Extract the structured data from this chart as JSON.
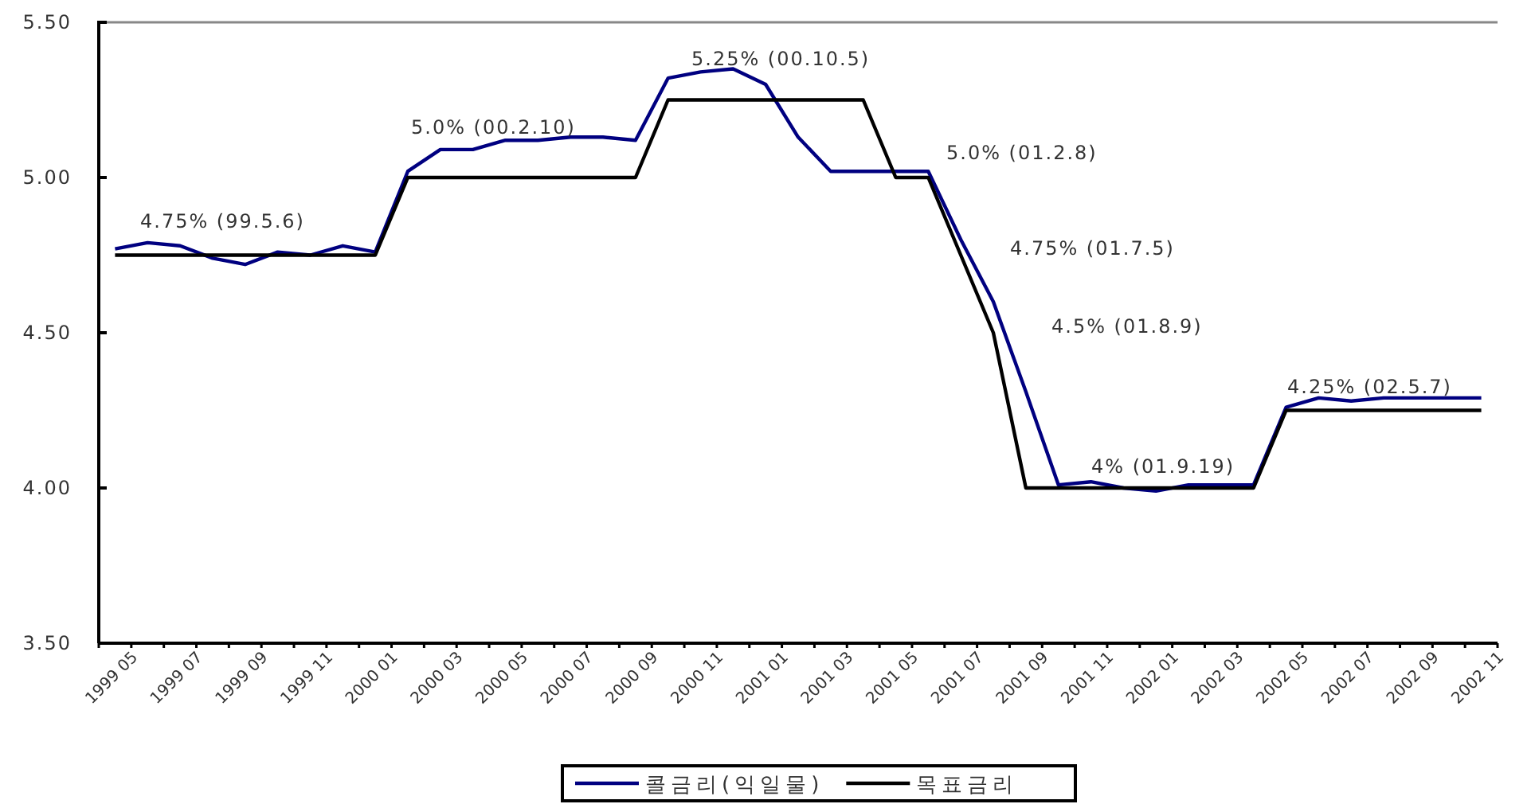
{
  "chart_data": {
    "type": "line",
    "categories": [
      "1999 05",
      null,
      "1999 07",
      null,
      "1999 09",
      null,
      "1999 11",
      null,
      "2000 01",
      null,
      "2000 03",
      null,
      "2000 05",
      null,
      "2000 07",
      null,
      "2000 09",
      null,
      "2000 11",
      null,
      "2001 01",
      null,
      "2001 03",
      null,
      "2001 05",
      null,
      "2001 07",
      null,
      "2001 09",
      null,
      "2001 11",
      null,
      "2002 01",
      null,
      "2002 03",
      null,
      "2002 05",
      null,
      "2002 07",
      null,
      "2002 09",
      null,
      "2002 11"
    ],
    "series": [
      {
        "name": "콜금리(익일물)",
        "color": "#000080",
        "values": [
          4.77,
          4.79,
          4.78,
          4.74,
          4.72,
          4.76,
          4.75,
          4.78,
          4.76,
          5.02,
          5.09,
          5.09,
          5.12,
          5.12,
          5.13,
          5.13,
          5.12,
          5.32,
          5.34,
          5.35,
          5.3,
          5.13,
          5.02,
          5.02,
          5.02,
          5.02,
          4.8,
          4.6,
          4.31,
          4.01,
          4.02,
          4.0,
          3.99,
          4.01,
          4.01,
          4.01,
          4.26,
          4.29,
          4.28,
          4.29,
          4.29,
          4.29,
          4.29
        ]
      },
      {
        "name": "목표금리",
        "color": "#000000",
        "values": [
          4.75,
          4.75,
          4.75,
          4.75,
          4.75,
          4.75,
          4.75,
          4.75,
          4.75,
          5.0,
          5.0,
          5.0,
          5.0,
          5.0,
          5.0,
          5.0,
          5.0,
          5.25,
          5.25,
          5.25,
          5.25,
          5.25,
          5.25,
          5.25,
          5.0,
          5.0,
          4.75,
          4.5,
          4.0,
          4.0,
          4.0,
          4.0,
          4.0,
          4.0,
          4.0,
          4.0,
          4.25,
          4.25,
          4.25,
          4.25,
          4.25,
          4.25,
          4.25
        ]
      }
    ],
    "ylim": [
      3.5,
      5.5
    ],
    "yticks": [
      {
        "value": 3.5,
        "label": "3.50"
      },
      {
        "value": 4.0,
        "label": "4.00"
      },
      {
        "value": 4.5,
        "label": "4.50"
      },
      {
        "value": 5.0,
        "label": "5.00"
      },
      {
        "value": 5.5,
        "label": "5.50"
      }
    ],
    "annotations": [
      "4.75% (99.5.6)",
      "5.0% (00.2.10)",
      "5.25% (00.10.5)",
      "5.0% (01.2.8)",
      "4.75% (01.7.5)",
      "4.5% (01.8.9)",
      "4% (01.9.19)",
      "4.25% (02.5.7)"
    ],
    "legend": "bottom",
    "line_style": "solid"
  }
}
